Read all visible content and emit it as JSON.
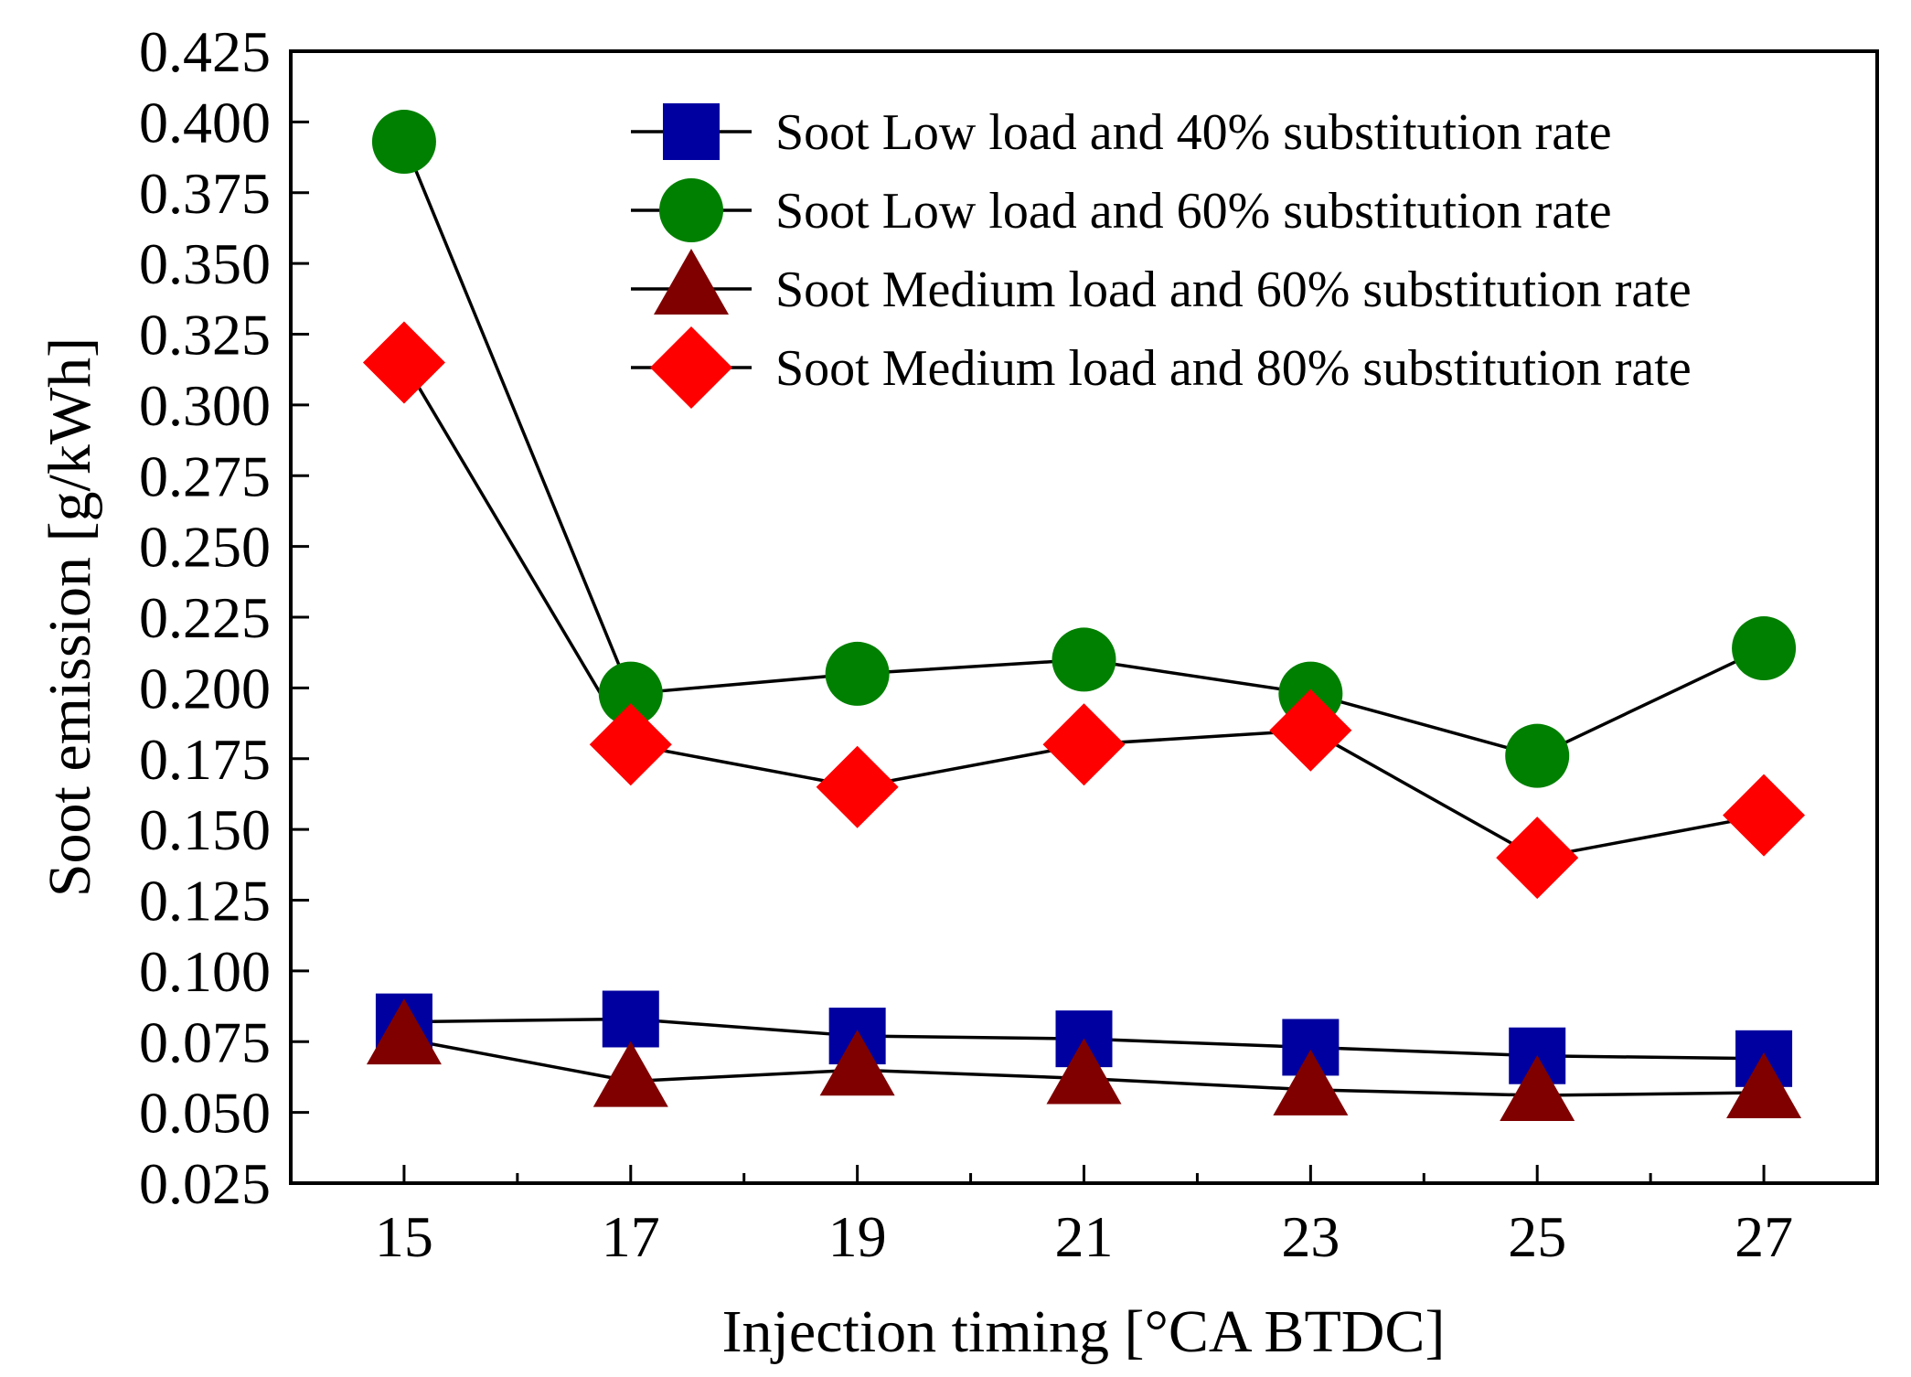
{
  "chart_data": {
    "type": "line",
    "title": "",
    "xlabel": "Injection timing [°CA BTDC]",
    "ylabel": "Soot emission [g/kWh]",
    "x": [
      15,
      17,
      19,
      21,
      23,
      25,
      27
    ],
    "xticks": [
      "15",
      "17",
      "19",
      "21",
      "23",
      "25",
      "27"
    ],
    "xlim": [
      14,
      28
    ],
    "ylim": [
      0.025,
      0.425
    ],
    "yticks": [
      "0.025",
      "0.050",
      "0.075",
      "0.100",
      "0.125",
      "0.150",
      "0.175",
      "0.200",
      "0.225",
      "0.250",
      "0.275",
      "0.300",
      "0.325",
      "0.350",
      "0.375",
      "0.400",
      "0.425"
    ],
    "grid": false,
    "legend_position": "top-right",
    "series": [
      {
        "name": "Soot Low load and 40% substitution rate",
        "marker": "square",
        "color": "#0000a0",
        "values": [
          0.082,
          0.083,
          0.077,
          0.076,
          0.073,
          0.07,
          0.069
        ]
      },
      {
        "name": "Soot Low load and 60% substitution rate",
        "marker": "circle",
        "color": "#008000",
        "values": [
          0.393,
          0.198,
          0.205,
          0.21,
          0.198,
          0.176,
          0.214
        ]
      },
      {
        "name": "Soot Medium load and 60% substitution rate",
        "marker": "triangle",
        "color": "#800000",
        "values": [
          0.076,
          0.061,
          0.065,
          0.062,
          0.058,
          0.056,
          0.057
        ]
      },
      {
        "name": "Soot Medium load and 80% substitution rate",
        "marker": "diamond",
        "color": "#ff0000",
        "values": [
          0.315,
          0.18,
          0.165,
          0.18,
          0.185,
          0.14,
          0.155
        ]
      }
    ]
  }
}
